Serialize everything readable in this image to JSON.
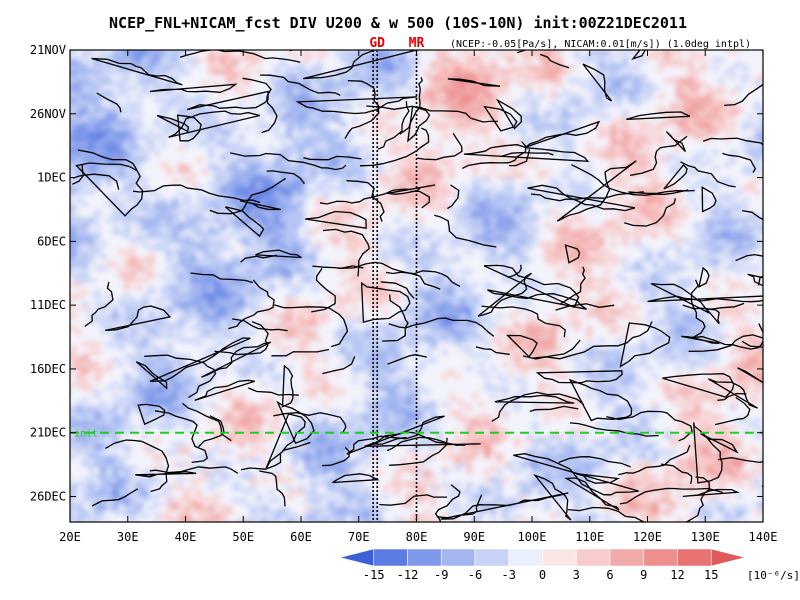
{
  "chart_data": {
    "type": "heatmap",
    "title": "NCEP_FNL+NICAM_fcst DIV U200 & w 500 (10S-10N) init:00Z21DEC2011",
    "subtitle": "(NCEP:-0.05[Pa/s], NICAM:0.01[m/s]) (1.0deg intpl)",
    "x_axis": {
      "quantity": "longitude",
      "range": [
        20,
        140
      ],
      "ticks": [
        "20E",
        "30E",
        "40E",
        "50E",
        "60E",
        "70E",
        "80E",
        "90E",
        "100E",
        "110E",
        "120E",
        "130E",
        "140E"
      ]
    },
    "y_axis": {
      "quantity": "date",
      "range": [
        "2011-11-21",
        "2011-12-28"
      ],
      "inverted": true,
      "ticks": [
        "21NOV",
        "26NOV",
        "1DEC",
        "6DEC",
        "11DEC",
        "16DEC",
        "21DEC",
        "26DEC"
      ]
    },
    "reference_lines": [
      {
        "label": "GD",
        "lon": 72.5,
        "style": "dotted",
        "color": "#000000"
      },
      {
        "label": "",
        "lon": 73.2,
        "style": "dotted",
        "color": "#000000"
      },
      {
        "label": "MR",
        "lon": 80,
        "style": "dotted",
        "color": "#000000"
      }
    ],
    "init_line": {
      "label": "init",
      "date": "2011-12-21",
      "style": "dashed",
      "color": "#22cc22"
    },
    "colorbar": {
      "levels": [
        "-15",
        "-12",
        "-9",
        "-6",
        "-3",
        "0",
        "3",
        "6",
        "9",
        "12",
        "15"
      ],
      "colors": [
        "#3b5fd9",
        "#5b7de3",
        "#7e99ea",
        "#a3b6f0",
        "#c7d3f6",
        "#eaeffc",
        "#fbe6e6",
        "#f8cccc",
        "#f2aaaa",
        "#ed8f8f",
        "#e77373",
        "#e05a5a"
      ],
      "unit": "[10⁻⁶/s]"
    },
    "grid": false,
    "contours": "black lines = w 500 threshold"
  },
  "colors": {
    "label_red": "#ee0000",
    "init_green": "#22cc22",
    "neutral": "#f3f3fb"
  }
}
